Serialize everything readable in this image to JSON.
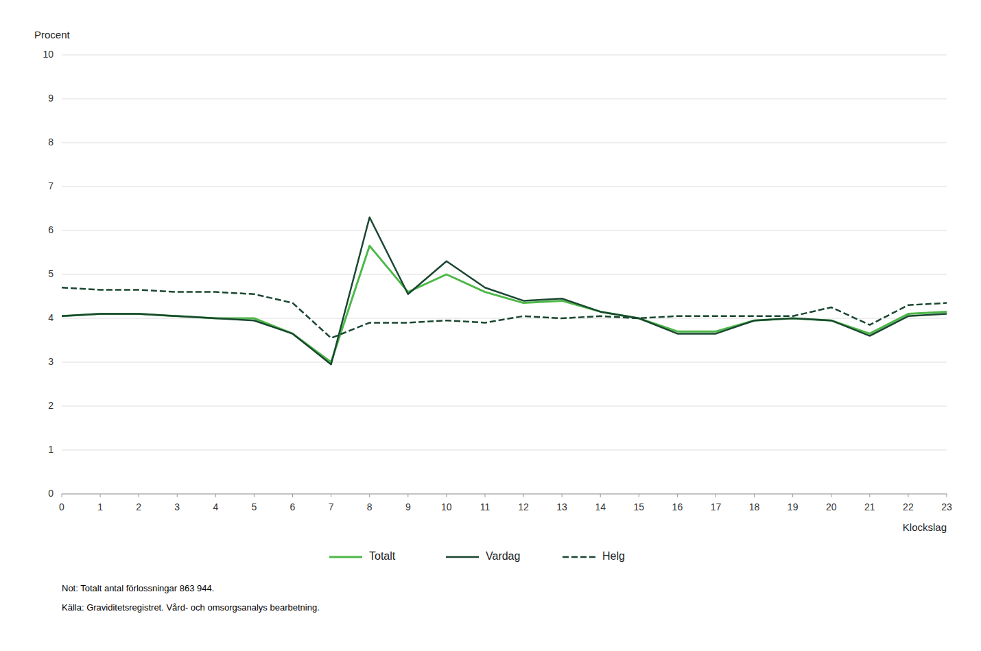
{
  "chart_data": {
    "type": "line",
    "x": [
      0,
      1,
      2,
      3,
      4,
      5,
      6,
      7,
      8,
      9,
      10,
      11,
      12,
      13,
      14,
      15,
      16,
      17,
      18,
      19,
      20,
      21,
      22,
      23
    ],
    "xlim": [
      0,
      23
    ],
    "xticks": [
      0,
      1,
      2,
      3,
      4,
      5,
      6,
      7,
      8,
      9,
      10,
      11,
      12,
      13,
      14,
      15,
      16,
      17,
      18,
      19,
      20,
      21,
      22,
      23
    ],
    "ylim": [
      0,
      10
    ],
    "yticks": [
      0,
      1,
      2,
      3,
      4,
      5,
      6,
      7,
      8,
      9,
      10
    ],
    "y_label": "Procent",
    "x_label": "Klockslag",
    "annotations": [
      "Not: Totalt antal förlossningar 863 944.",
      "Källa: Graviditetsregistret. Vård- och omsorgsanalys bearbetning."
    ],
    "grid": true,
    "legend": "bottom",
    "series": [
      {
        "name": "Totalt",
        "color": "#4db848",
        "line_style": "solid",
        "values": [
          4.05,
          4.1,
          4.1,
          4.05,
          4.0,
          4.0,
          3.65,
          3.0,
          5.65,
          4.6,
          5.0,
          4.6,
          4.35,
          4.4,
          4.15,
          4.0,
          3.7,
          3.7,
          3.95,
          4.0,
          3.95,
          3.65,
          4.1,
          4.15
        ]
      },
      {
        "name": "Vardag",
        "color": "#1a4731",
        "line_style": "solid",
        "values": [
          4.05,
          4.1,
          4.1,
          4.05,
          4.0,
          3.95,
          3.65,
          2.95,
          6.3,
          4.55,
          5.3,
          4.7,
          4.4,
          4.45,
          4.15,
          4.0,
          3.65,
          3.65,
          3.95,
          4.0,
          3.95,
          3.6,
          4.05,
          4.1
        ]
      },
      {
        "name": "Helg",
        "color": "#1a4731",
        "line_style": "dashed",
        "values": [
          4.7,
          4.65,
          4.65,
          4.6,
          4.6,
          4.55,
          4.35,
          3.55,
          3.9,
          3.9,
          3.95,
          3.9,
          4.05,
          4.0,
          4.05,
          4.0,
          4.05,
          4.05,
          4.05,
          4.05,
          4.25,
          3.85,
          4.3,
          4.35
        ]
      }
    ]
  }
}
